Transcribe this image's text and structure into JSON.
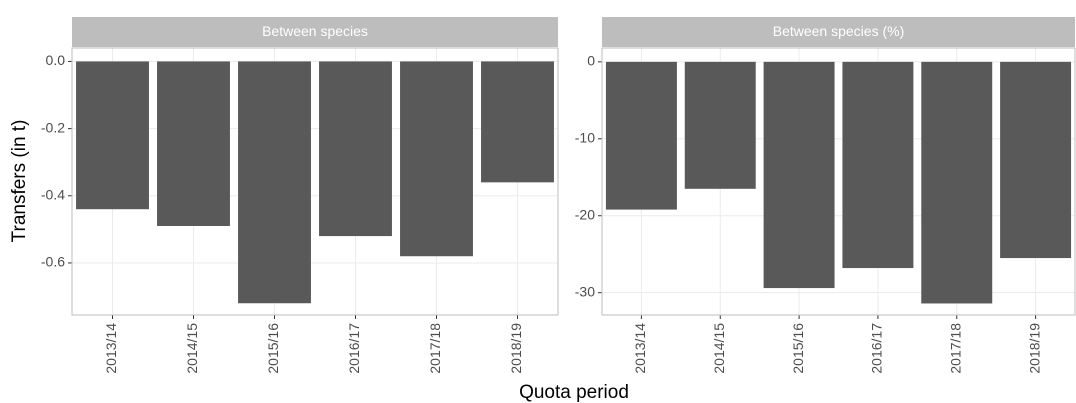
{
  "chart_data": [
    {
      "type": "bar",
      "title": "Between species",
      "categories": [
        "2013/14",
        "2014/15",
        "2015/16",
        "2016/17",
        "2017/18",
        "2018/19"
      ],
      "values": [
        -0.44,
        -0.49,
        -0.72,
        -0.52,
        -0.58,
        -0.36
      ],
      "color": "#595959",
      "ylim": [
        -0.755,
        0.04
      ],
      "yticks": [
        {
          "value": 0,
          "label": "0.0"
        },
        -0.2,
        -0.4,
        -0.6
      ],
      "grid": true
    },
    {
      "type": "bar",
      "title": "Between species (%)",
      "categories": [
        "2013/14",
        "2014/15",
        "2015/16",
        "2016/17",
        "2017/18",
        "2018/19"
      ],
      "values": [
        -19.2,
        -16.5,
        -29.4,
        -26.8,
        -31.4,
        -25.5
      ],
      "color": "#595959",
      "ylim": [
        -32.9,
        1.8
      ],
      "yticks": [
        0,
        -10,
        -20,
        -30
      ],
      "grid": true
    }
  ],
  "xlabel": "Quota period",
  "ylabel": "Transfers (in t)"
}
